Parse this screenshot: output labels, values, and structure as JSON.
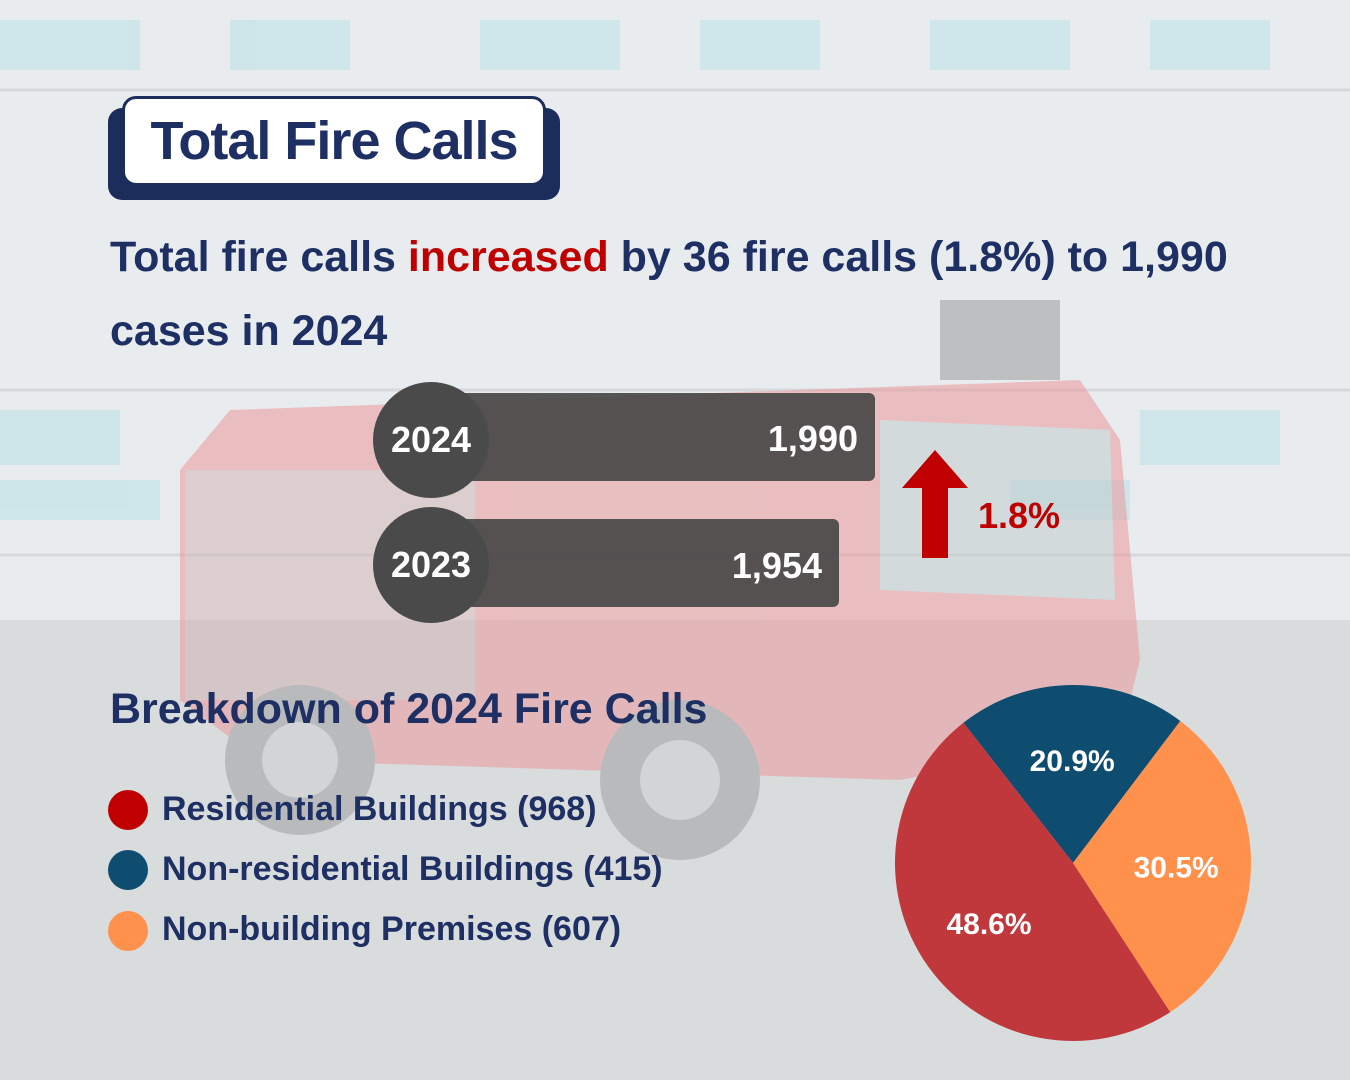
{
  "title": "Total Fire Calls",
  "headline": {
    "part1": "Total fire calls ",
    "highlight": "increased",
    "part2": " by 36 fire calls (1.8%) to 1,990 cases in 2024"
  },
  "comparison": {
    "change_label": "1.8%",
    "bars": [
      {
        "year": "2024",
        "value_label": "1,990"
      },
      {
        "year": "2023",
        "value_label": "1,954"
      }
    ]
  },
  "breakdown": {
    "title": "Breakdown of 2024 Fire Calls",
    "legend": [
      {
        "label": "Residential Buildings (968)"
      },
      {
        "label": "Non-residential Buildings (415)"
      },
      {
        "label": "Non-building Premises (607)"
      }
    ]
  },
  "chart_data": [
    {
      "type": "bar",
      "orientation": "horizontal",
      "categories": [
        "2024",
        "2023"
      ],
      "values": [
        1990,
        1954
      ],
      "title": ""
    },
    {
      "type": "pie",
      "categories": [
        "Residential Buildings",
        "Non-residential Buildings",
        "Non-building Premises"
      ],
      "values": [
        968,
        415,
        607
      ],
      "percent_labels": [
        "48.6%",
        "20.9%",
        "30.5%"
      ],
      "colors": [
        "#c0373c",
        "#0f4d70",
        "#ff914d"
      ]
    }
  ],
  "colors": {
    "navy": "#1e2f63",
    "red": "#c00000",
    "bar": "#484848",
    "residential": "#c00000",
    "non_residential": "#0f4d70",
    "non_building": "#ff914d"
  }
}
